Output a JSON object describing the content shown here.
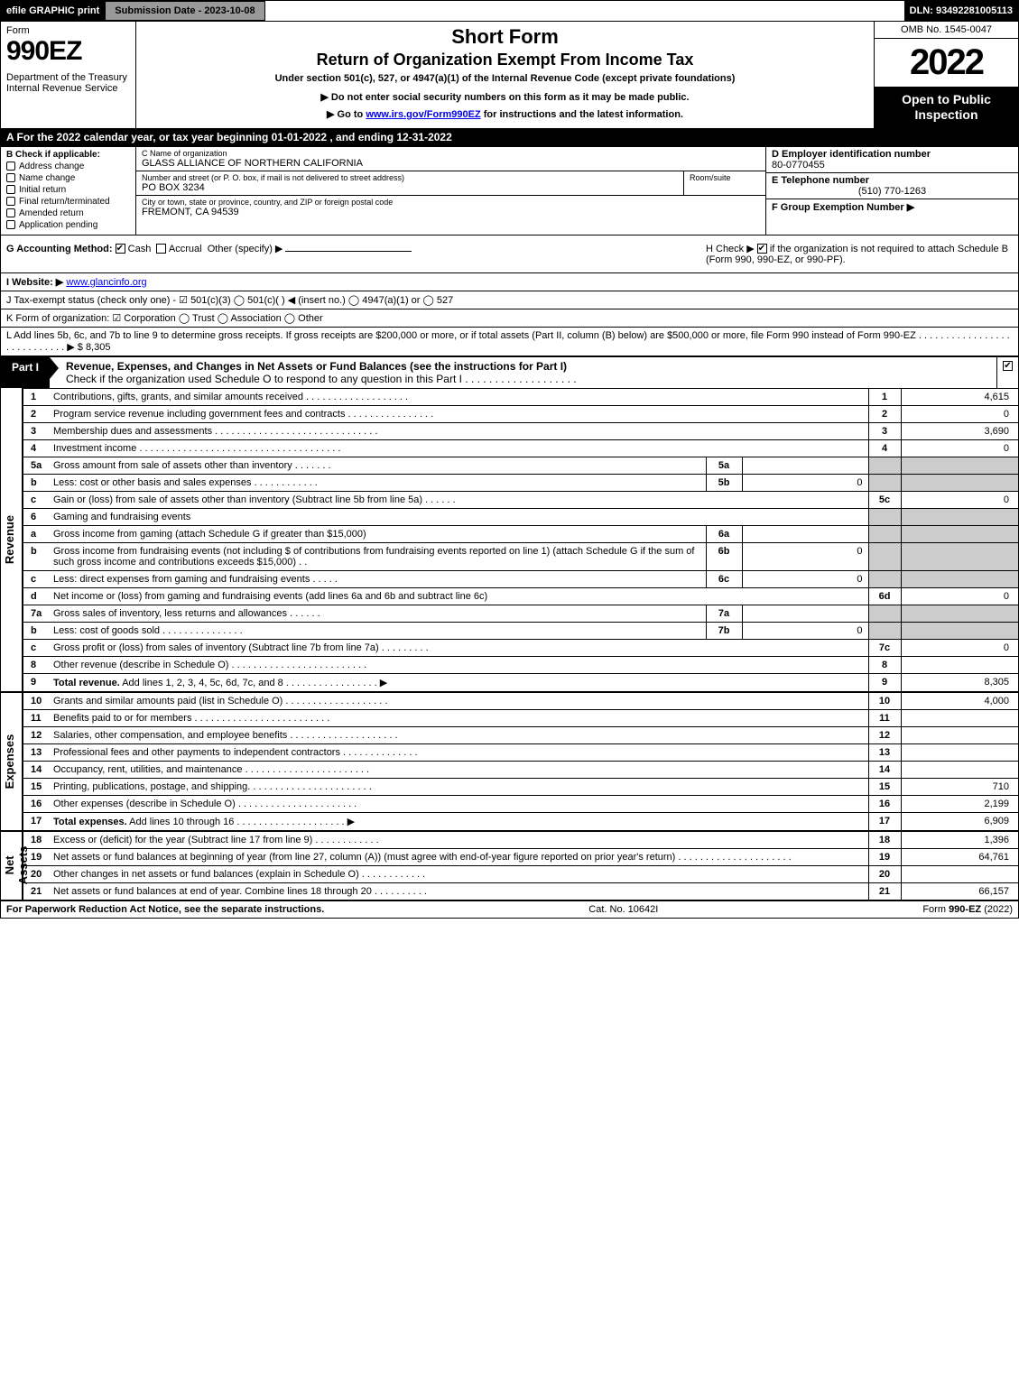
{
  "topbar": {
    "efile": "efile GRAPHIC print",
    "submit": "Submission Date - 2023-10-08",
    "dln": "DLN: 93492281005113"
  },
  "header": {
    "form_word": "Form",
    "form_num": "990EZ",
    "dept": "Department of the Treasury\nInternal Revenue Service",
    "short_form": "Short Form",
    "title2": "Return of Organization Exempt From Income Tax",
    "under": "Under section 501(c), 527, or 4947(a)(1) of the Internal Revenue Code (except private foundations)",
    "donot": "▶ Do not enter social security numbers on this form as it may be made public.",
    "goto_pre": "▶ Go to ",
    "goto_link": "www.irs.gov/Form990EZ",
    "goto_post": " for instructions and the latest information.",
    "omb": "OMB No. 1545-0047",
    "year": "2022",
    "open": "Open to Public Inspection"
  },
  "line_a": "A  For the 2022 calendar year, or tax year beginning 01-01-2022 , and ending 12-31-2022",
  "section_b": {
    "label": "B  Check if applicable:",
    "items": [
      "Address change",
      "Name change",
      "Initial return",
      "Final return/terminated",
      "Amended return",
      "Application pending"
    ]
  },
  "section_c": {
    "c_label": "C Name of organization",
    "org": "GLASS ALLIANCE OF NORTHERN CALIFORNIA",
    "addr_label": "Number and street (or P. O. box, if mail is not delivered to street address)",
    "room_label": "Room/suite",
    "addr": "PO BOX 3234",
    "city_label": "City or town, state or province, country, and ZIP or foreign postal code",
    "city": "FREMONT, CA  94539"
  },
  "section_def": {
    "d_label": "D Employer identification number",
    "ein": "80-0770455",
    "e_label": "E Telephone number",
    "phone": "(510) 770-1263",
    "f_label": "F Group Exemption Number  ▶"
  },
  "line_g": {
    "label": "G Accounting Method:",
    "cash": "Cash",
    "accrual": "Accrual",
    "other": "Other (specify) ▶"
  },
  "line_h": {
    "text1": "H  Check ▶ ",
    "text2": " if the organization is not required to attach Schedule B (Form 990, 990-EZ, or 990-PF)."
  },
  "line_i": {
    "label": "I Website: ▶",
    "url": "www.glancinfo.org"
  },
  "line_j": "J Tax-exempt status (check only one) - ☑ 501(c)(3)  ◯ 501(c)(  ) ◀ (insert no.)  ◯ 4947(a)(1) or  ◯ 527",
  "line_k": "K Form of organization:  ☑ Corporation  ◯ Trust  ◯ Association  ◯ Other",
  "line_l": {
    "text": "L Add lines 5b, 6c, and 7b to line 9 to determine gross receipts. If gross receipts are $200,000 or more, or if total assets (Part II, column (B) below) are $500,000 or more, file Form 990 instead of Form 990-EZ .  .  .  .  .  .  .  .  .  .  .  .  .  .  .  .  .  .  .  .  .  .  .  .  .  .  .  .  ▶ $",
    "value": "8,305"
  },
  "part1": {
    "tab": "Part I",
    "title": "Revenue, Expenses, and Changes in Net Assets or Fund Balances (see the instructions for Part I)",
    "subtitle": "Check if the organization used Schedule O to respond to any question in this Part I .  .  .  .  .  .  .  .  .  .  .  .  .  .  .  .  .  .  ."
  },
  "side_labels": {
    "revenue": "Revenue",
    "expenses": "Expenses",
    "net": "Net Assets"
  },
  "rows": [
    {
      "n": "1",
      "d": "Contributions, gifts, grants, and similar amounts received  .  .  .  .  .  .  .  .  .  .  .  .  .  .  .  .  .  .  .",
      "rn": "1",
      "rv": "4,615"
    },
    {
      "n": "2",
      "d": "Program service revenue including government fees and contracts  .  .  .  .  .  .  .  .  .  .  .  .  .  .  .  .",
      "rn": "2",
      "rv": "0"
    },
    {
      "n": "3",
      "d": "Membership dues and assessments  .  .  .  .  .  .  .  .  .  .  .  .  .  .  .  .  .  .  .  .  .  .  .  .  .  .  .  .  .  .",
      "rn": "3",
      "rv": "3,690"
    },
    {
      "n": "4",
      "d": "Investment income .  .  .  .  .  .  .  .  .  .  .  .  .  .  .  .  .  .  .  .  .  .  .  .  .  .  .  .  .  .  .  .  .  .  .  .  .",
      "rn": "4",
      "rv": "0"
    },
    {
      "n": "5a",
      "d": "Gross amount from sale of assets other than inventory  .  .  .  .  .  .  .",
      "sub_n": "5a",
      "sub_v": "",
      "shadeR": true
    },
    {
      "n": "b",
      "d": "Less: cost or other basis and sales expenses  .  .  .  .  .  .  .  .  .  .  .  .",
      "sub_n": "5b",
      "sub_v": "0",
      "shadeR": true
    },
    {
      "n": "c",
      "d": "Gain or (loss) from sale of assets other than inventory (Subtract line 5b from line 5a)  .  .  .  .  .  .",
      "rn": "5c",
      "rv": "0"
    },
    {
      "n": "6",
      "d": "Gaming and fundraising events",
      "shadeR": true,
      "noRbord": true
    },
    {
      "n": "a",
      "d": "Gross income from gaming (attach Schedule G if greater than $15,000)",
      "sub_n": "6a",
      "sub_v": "",
      "shadeR": true
    },
    {
      "n": "b",
      "d": "Gross income from fundraising events (not including $                          of contributions from fundraising events reported on line 1) (attach Schedule G if the sum of such gross income and contributions exceeds $15,000)      .  .",
      "sub_n": "6b",
      "sub_v": "0",
      "shadeR": true
    },
    {
      "n": "c",
      "d": "Less: direct expenses from gaming and fundraising events    .  .  .  .  .",
      "sub_n": "6c",
      "sub_v": "0",
      "shadeR": true
    },
    {
      "n": "d",
      "d": "Net income or (loss) from gaming and fundraising events (add lines 6a and 6b and subtract line 6c)",
      "rn": "6d",
      "rv": "0"
    },
    {
      "n": "7a",
      "d": "Gross sales of inventory, less returns and allowances  .  .  .  .  .  .",
      "sub_n": "7a",
      "sub_v": "",
      "shadeR": true
    },
    {
      "n": "b",
      "d": "Less: cost of goods sold        .  .  .  .  .  .  .  .  .  .  .  .  .  .  .",
      "sub_n": "7b",
      "sub_v": "0",
      "shadeR": true
    },
    {
      "n": "c",
      "d": "Gross profit or (loss) from sales of inventory (Subtract line 7b from line 7a)  .  .  .  .  .  .  .  .  .",
      "rn": "7c",
      "rv": "0"
    },
    {
      "n": "8",
      "d": "Other revenue (describe in Schedule O) .  .  .  .  .  .  .  .  .  .  .  .  .  .  .  .  .  .  .  .  .  .  .  .  .",
      "rn": "8",
      "rv": ""
    },
    {
      "n": "9",
      "d": "Total revenue. Add lines 1, 2, 3, 4, 5c, 6d, 7c, and 8  .  .  .  .  .  .  .  .  .  .  .  .  .  .  .  .  .  ▶",
      "rn": "9",
      "rv": "8,305",
      "bold": true
    }
  ],
  "exp_rows": [
    {
      "n": "10",
      "d": "Grants and similar amounts paid (list in Schedule O)  .  .  .  .  .  .  .  .  .  .  .  .  .  .  .  .  .  .  .",
      "rn": "10",
      "rv": "4,000"
    },
    {
      "n": "11",
      "d": "Benefits paid to or for members       .  .  .  .  .  .  .  .  .  .  .  .  .  .  .  .  .  .  .  .  .  .  .  .  .",
      "rn": "11",
      "rv": ""
    },
    {
      "n": "12",
      "d": "Salaries, other compensation, and employee benefits .  .  .  .  .  .  .  .  .  .  .  .  .  .  .  .  .  .  .  .",
      "rn": "12",
      "rv": ""
    },
    {
      "n": "13",
      "d": "Professional fees and other payments to independent contractors  .  .  .  .  .  .  .  .  .  .  .  .  .  .",
      "rn": "13",
      "rv": ""
    },
    {
      "n": "14",
      "d": "Occupancy, rent, utilities, and maintenance .  .  .  .  .  .  .  .  .  .  .  .  .  .  .  .  .  .  .  .  .  .  .",
      "rn": "14",
      "rv": ""
    },
    {
      "n": "15",
      "d": "Printing, publications, postage, and shipping.  .  .  .  .  .  .  .  .  .  .  .  .  .  .  .  .  .  .  .  .  .  .",
      "rn": "15",
      "rv": "710"
    },
    {
      "n": "16",
      "d": "Other expenses (describe in Schedule O)      .  .  .  .  .  .  .  .  .  .  .  .  .  .  .  .  .  .  .  .  .  .",
      "rn": "16",
      "rv": "2,199"
    },
    {
      "n": "17",
      "d": "Total expenses. Add lines 10 through 16      .  .  .  .  .  .  .  .  .  .  .  .  .  .  .  .  .  .  .  .   ▶",
      "rn": "17",
      "rv": "6,909",
      "bold": true
    }
  ],
  "net_rows": [
    {
      "n": "18",
      "d": "Excess or (deficit) for the year (Subtract line 17 from line 9)        .  .  .  .  .  .  .  .  .  .  .  .",
      "rn": "18",
      "rv": "1,396"
    },
    {
      "n": "19",
      "d": "Net assets or fund balances at beginning of year (from line 27, column (A)) (must agree with end-of-year figure reported on prior year's return) .  .  .  .  .  .  .  .  .  .  .  .  .  .  .  .  .  .  .  .  .",
      "rn": "19",
      "rv": "64,761"
    },
    {
      "n": "20",
      "d": "Other changes in net assets or fund balances (explain in Schedule O) .  .  .  .  .  .  .  .  .  .  .  .",
      "rn": "20",
      "rv": ""
    },
    {
      "n": "21",
      "d": "Net assets or fund balances at end of year. Combine lines 18 through 20 .  .  .  .  .  .  .  .  .  .",
      "rn": "21",
      "rv": "66,157"
    }
  ],
  "footer": {
    "left": "For Paperwork Reduction Act Notice, see the separate instructions.",
    "center": "Cat. No. 10642I",
    "right_pre": "Form ",
    "right_bold": "990-EZ",
    "right_post": " (2022)"
  },
  "colors": {
    "black": "#000000",
    "white": "#ffffff",
    "grey_bar": "#999999",
    "shade": "#cccccc"
  }
}
